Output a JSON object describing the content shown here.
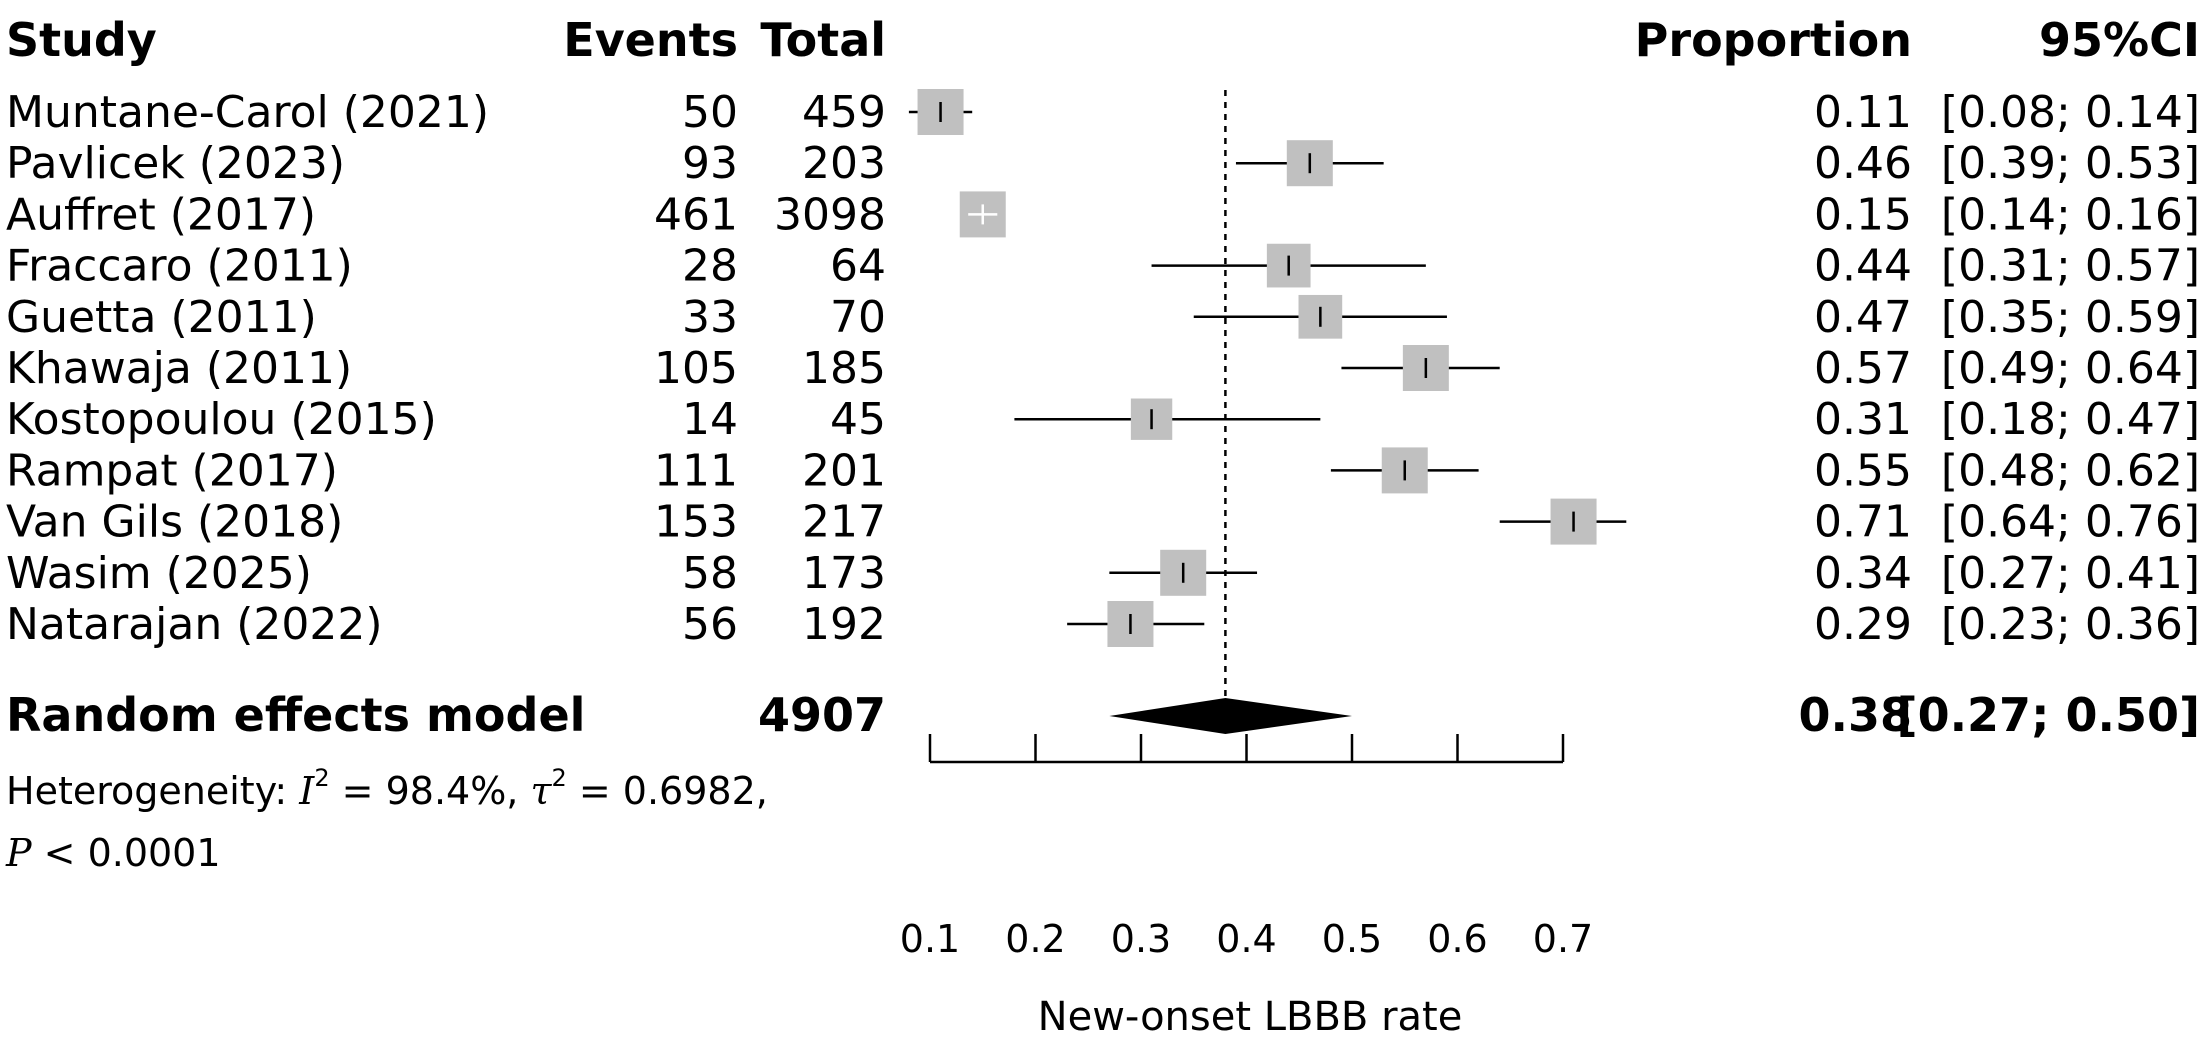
{
  "chart_data": {
    "type": "forest",
    "columns": {
      "study": "Study",
      "events": "Events",
      "total": "Total",
      "proportion": "Proportion",
      "ci": "95%CI"
    },
    "studies": [
      {
        "name": "Muntane-Carol (2021)",
        "events": "50",
        "total": "459",
        "proportion": 0.11,
        "ci_low": 0.08,
        "ci_high": 0.14,
        "prop_label": "0.11",
        "ci_label": "[0.08; 0.14]",
        "weight": 1.0
      },
      {
        "name": "Pavlicek (2023)",
        "events": "93",
        "total": "203",
        "proportion": 0.46,
        "ci_low": 0.39,
        "ci_high": 0.53,
        "prop_label": "0.46",
        "ci_label": "[0.39; 0.53]",
        "weight": 1.0
      },
      {
        "name": "Auffret (2017)",
        "events": "461",
        "total": "3098",
        "proportion": 0.15,
        "ci_low": 0.14,
        "ci_high": 0.16,
        "prop_label": "0.15",
        "ci_label": "[0.14; 0.16]",
        "weight": 1.0
      },
      {
        "name": "Fraccaro (2011)",
        "events": "28",
        "total": "64",
        "proportion": 0.44,
        "ci_low": 0.31,
        "ci_high": 0.57,
        "prop_label": "0.44",
        "ci_label": "[0.31; 0.57]",
        "weight": 0.95
      },
      {
        "name": "Guetta (2011)",
        "events": "33",
        "total": "70",
        "proportion": 0.47,
        "ci_low": 0.35,
        "ci_high": 0.59,
        "prop_label": "0.47",
        "ci_label": "[0.35; 0.59]",
        "weight": 0.95
      },
      {
        "name": "Khawaja (2011)",
        "events": "105",
        "total": "185",
        "proportion": 0.57,
        "ci_low": 0.49,
        "ci_high": 0.64,
        "prop_label": "0.57",
        "ci_label": "[0.49; 0.64]",
        "weight": 1.0
      },
      {
        "name": "Kostopoulou (2015)",
        "events": "14",
        "total": "45",
        "proportion": 0.31,
        "ci_low": 0.18,
        "ci_high": 0.47,
        "prop_label": "0.31",
        "ci_label": "[0.18; 0.47]",
        "weight": 0.9
      },
      {
        "name": "Rampat (2017)",
        "events": "111",
        "total": "201",
        "proportion": 0.55,
        "ci_low": 0.48,
        "ci_high": 0.62,
        "prop_label": "0.55",
        "ci_label": "[0.48; 0.62]",
        "weight": 1.0
      },
      {
        "name": "Van Gils (2018)",
        "events": "153",
        "total": "217",
        "proportion": 0.71,
        "ci_low": 0.64,
        "ci_high": 0.76,
        "prop_label": "0.71",
        "ci_label": "[0.64; 0.76]",
        "weight": 1.0
      },
      {
        "name": "Wasim (2025)",
        "events": "58",
        "total": "173",
        "proportion": 0.34,
        "ci_low": 0.27,
        "ci_high": 0.41,
        "prop_label": "0.34",
        "ci_label": "[0.27; 0.41]",
        "weight": 1.0
      },
      {
        "name": "Natarajan (2022)",
        "events": "56",
        "total": "192",
        "proportion": 0.29,
        "ci_low": 0.23,
        "ci_high": 0.36,
        "prop_label": "0.29",
        "ci_label": "[0.23; 0.36]",
        "weight": 1.0
      }
    ],
    "pooled": {
      "label": "Random effects model",
      "total": "4907",
      "proportion": 0.38,
      "ci_low": 0.27,
      "ci_high": 0.5,
      "prop_label": "0.38",
      "ci_label": "[0.27; 0.50]"
    },
    "heterogeneity": {
      "prefix": "Heterogeneity: ",
      "i2_symbol": "I",
      "i2_value": " = 98.4%, ",
      "tau2_symbol": "τ",
      "tau2_value": " = 0.6982,",
      "sup": "2",
      "p_symbol": "P",
      "p_value": " < 0.0001"
    },
    "xaxis": {
      "label": "New-onset LBBB rate",
      "ticks": [
        0.1,
        0.2,
        0.3,
        0.4,
        0.5,
        0.6,
        0.7
      ],
      "tick_labels": [
        "0.1",
        "0.2",
        "0.3",
        "0.4",
        "0.5",
        "0.6",
        "0.7"
      ],
      "range": [
        0.1,
        0.7
      ]
    },
    "reference_line": 0.38,
    "colors": {
      "square": "#c0c0c0",
      "line": "#000000",
      "diamond": "#000000",
      "small_ci_cross": "#ffffff"
    }
  }
}
